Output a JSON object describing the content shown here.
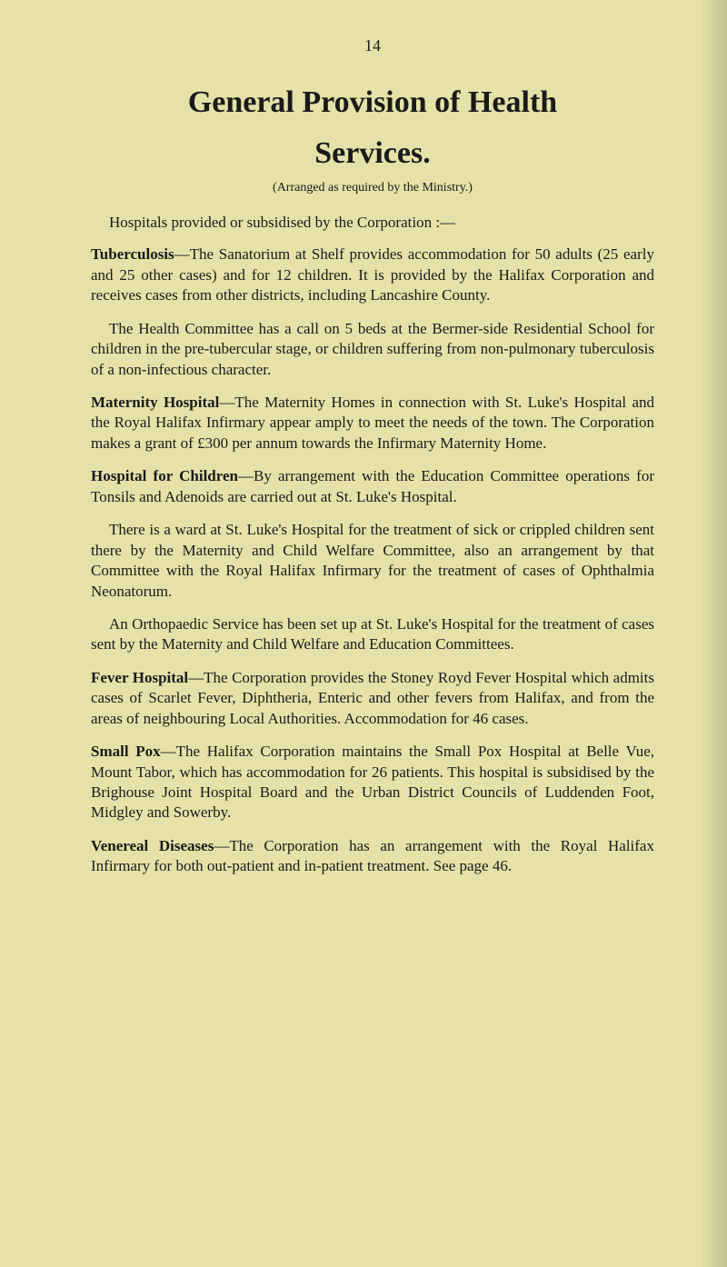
{
  "page_number": "14",
  "title_line1": "General Provision of Health",
  "title_line2": "Services.",
  "arranged": "(Arranged as required by the Ministry.)",
  "intro": "Hospitals provided or subsidised by the Corporation :—",
  "sections": {
    "tuberculosis": {
      "heading": "Tuberculosis",
      "body": "—The Sanatorium at Shelf provides accommodation for 50 adults (25 early and 25 other cases) and for 12 children. It is provided by the Halifax Corporation and receives cases from other districts, including Lancashire County.",
      "para2": "The Health Committee has a call on 5 beds at the Bermer-side Residential School for children in the pre-tubercular stage, or children suffering from non-pulmonary tuberculosis of a non-infectious character."
    },
    "maternity": {
      "heading": "Maternity Hospital",
      "body": "—The Maternity Homes in connection with St. Luke's Hospital and the Royal Halifax Infirmary appear amply to meet the needs of the town. The Corporation makes a grant of £300 per annum towards the Infirmary Maternity Home."
    },
    "children": {
      "heading": "Hospital for Children",
      "body": "—By arrangement with the Education Committee operations for Tonsils and Adenoids are carried out at St. Luke's Hospital.",
      "para2": "There is a ward at St. Luke's Hospital for the treatment of sick or crippled children sent there by the Maternity and Child Welfare Committee, also an arrangement by that Committee with the Royal Halifax Infirmary for the treatment of cases of Ophthalmia Neonatorum.",
      "para3": "An Orthopaedic Service has been set up at St. Luke's Hospital for the treatment of cases sent by the Maternity and Child Welfare and Education Committees."
    },
    "fever": {
      "heading": "Fever Hospital",
      "body": "—The Corporation provides the Stoney Royd Fever Hospital which admits cases of Scarlet Fever, Diphtheria, Enteric and other fevers from Halifax, and from the areas of neighbouring Local Authorities. Accommodation for 46 cases."
    },
    "smallpox": {
      "heading": "Small Pox",
      "body": "—The Halifax Corporation maintains the Small Pox Hospital at Belle Vue, Mount Tabor, which has accommodation for 26 patients. This hospital is subsidised by the Brighouse Joint Hospital Board and the Urban District Councils of Luddenden Foot, Midgley and Sowerby."
    },
    "venereal": {
      "heading": "Venereal Diseases",
      "body": "—The Corporation has an arrangement with the Royal Halifax Infirmary for both out-patient and in-patient treatment. See page 46."
    }
  },
  "colors": {
    "page_bg": "#e5e1a8",
    "text": "#1a1a1a"
  },
  "typography": {
    "body_fontsize_pt": 13,
    "title_fontsize_pt": 26,
    "font_family": "serif"
  }
}
